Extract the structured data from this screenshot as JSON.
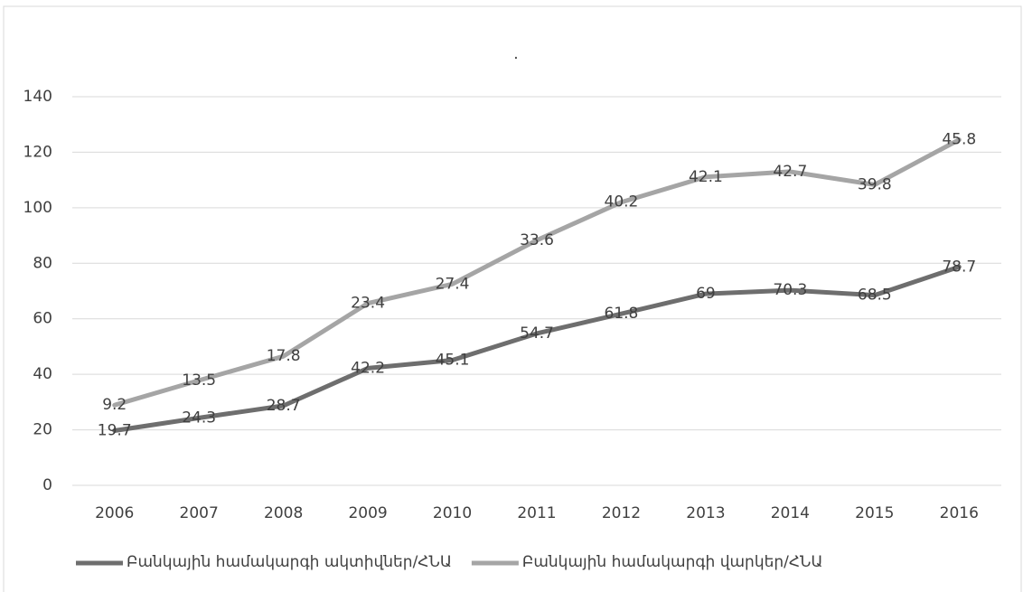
{
  "chart_data": {
    "type": "line",
    "stacked": true,
    "title": ".",
    "categories": [
      "2006",
      "2007",
      "2008",
      "2009",
      "2010",
      "2011",
      "2012",
      "2013",
      "2014",
      "2015",
      "2016"
    ],
    "series": [
      {
        "name": "Բանկային համակարգի ակտիվներ/ՀՆԱ",
        "color": "#6e6e6e",
        "values": [
          19.7,
          24.3,
          28.7,
          42.2,
          45.1,
          54.7,
          61.8,
          69,
          70.3,
          68.5,
          78.7
        ]
      },
      {
        "name": "Բանկային համակարգի վարկեր/ՀՆԱ",
        "color": "#a5a5a5",
        "values": [
          9.2,
          13.5,
          17.8,
          23.4,
          27.4,
          33.6,
          40.2,
          42.1,
          42.7,
          39.8,
          45.8
        ]
      }
    ],
    "ylim": [
      0,
      140
    ],
    "yticks": [
      0,
      20,
      40,
      60,
      80,
      100,
      120,
      140
    ],
    "grid": true,
    "legend": "bottom"
  }
}
